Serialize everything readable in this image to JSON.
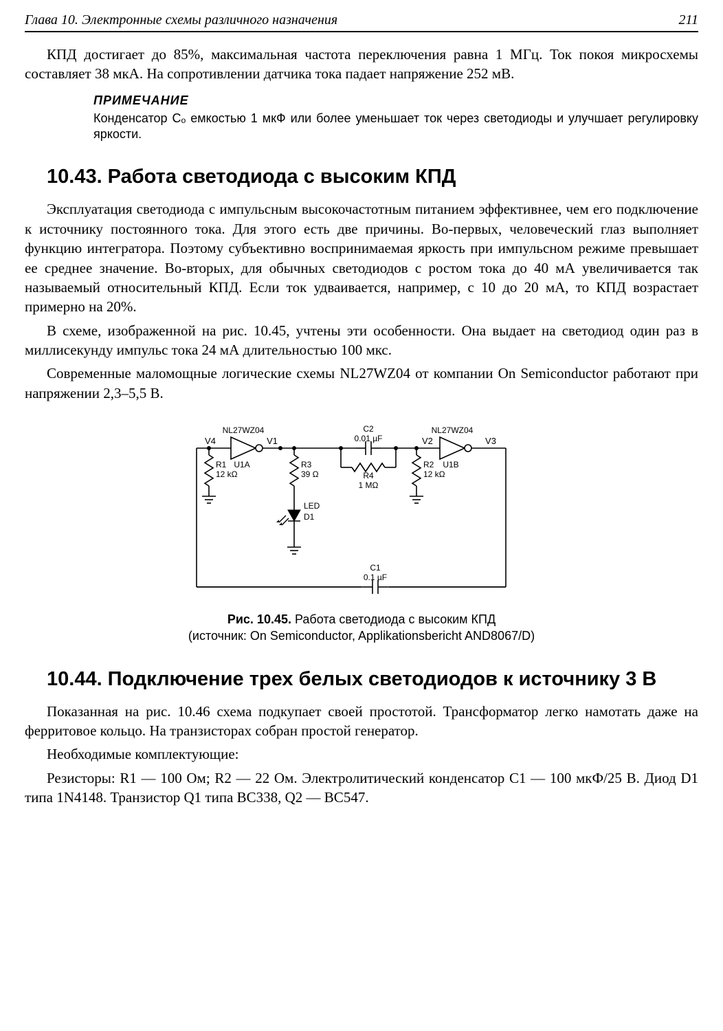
{
  "header": {
    "chapter_title": "Глава 10. Электронные схемы различного назначения",
    "page_number": "211"
  },
  "intro_paragraph": "КПД достигает до 85%, максимальная частота переключения равна 1 МГц. Ток покоя микросхемы составляет 38 мкА. На сопротивлении датчика тока падает напряжение 252 мВ.",
  "note": {
    "heading": "Примечание",
    "text": "Конденсатор Cₒ емкостью 1 мкФ или более уменьшает ток через светодиоды и улучшает регулировку яркости."
  },
  "section_10_43": {
    "title": "10.43. Работа светодиода с высоким КПД",
    "p1": "Эксплуатация светодиода с импульсным высокочастотным питанием эффективнее, чем его подключение к источнику постоянного тока. Для этого есть две причины. Во-первых, человеческий глаз выполняет функцию интегратора. Поэтому субъективно воспринимаемая яркость при импульсном режиме превышает ее среднее значение. Во-вторых, для обычных светодиодов с ростом тока до 40 мА увеличивается так называемый относительный КПД. Если ток удваивается, например, с 10 до 20 мА, то КПД возрастает примерно на 20%.",
    "p2": "В схеме, изображенной на рис. 10.45, учтены эти особенности. Она выдает на светодиод один раз в миллисекунду импульс тока 24 мА длительностью 100 мкс.",
    "p3": "Современные маломощные логические схемы NL27WZ04 от компании On Semiconductor работают при напряжении 2,3–5,5 В."
  },
  "figure_10_45": {
    "caption_bold": "Рис. 10.45.",
    "caption_rest": " Работа светодиода с высоким КПД",
    "caption_line2": "(источник: On Semiconductor, Applikationsbericht AND8067/D)",
    "labels": {
      "ic1": "NL27WZ04",
      "ic2": "NL27WZ04",
      "u1a": "U1A",
      "u1b": "U1B",
      "v1": "V1",
      "v2": "V2",
      "v3": "V3",
      "v4": "V4",
      "r1": "R1",
      "r1v": "12 kΩ",
      "r2": "R2",
      "r2v": "12 kΩ",
      "r3": "R3",
      "r3v": "39 Ω",
      "r4": "R4",
      "r4v": "1 MΩ",
      "c1": "C1",
      "c1v": "0.1 µF",
      "c2": "C2",
      "c2v": "0.01 µF",
      "led": "LED",
      "d1": "D1"
    }
  },
  "section_10_44": {
    "title": "10.44. Подключение трех белых светодиодов к источнику 3 В",
    "p1": "Показанная на рис. 10.46 схема подкупает своей простотой. Трансформатор легко намотать даже на ферритовое кольцо. На транзисторах собран простой генератор.",
    "p2": "Необходимые комплектующие:",
    "p3": "Резисторы: R1 — 100 Ом; R2 — 22 Ом. Электролитический конденсатор C1 — 100 мкФ/25 В. Диод D1 типа 1N4148. Транзистор Q1 типа BC338, Q2 — BC547."
  },
  "diagram_style": {
    "stroke": "#000000",
    "stroke_width": 1.6,
    "font_family": "Arial, Helvetica, sans-serif",
    "font_size_small": 13,
    "font_size_tiny": 12
  }
}
